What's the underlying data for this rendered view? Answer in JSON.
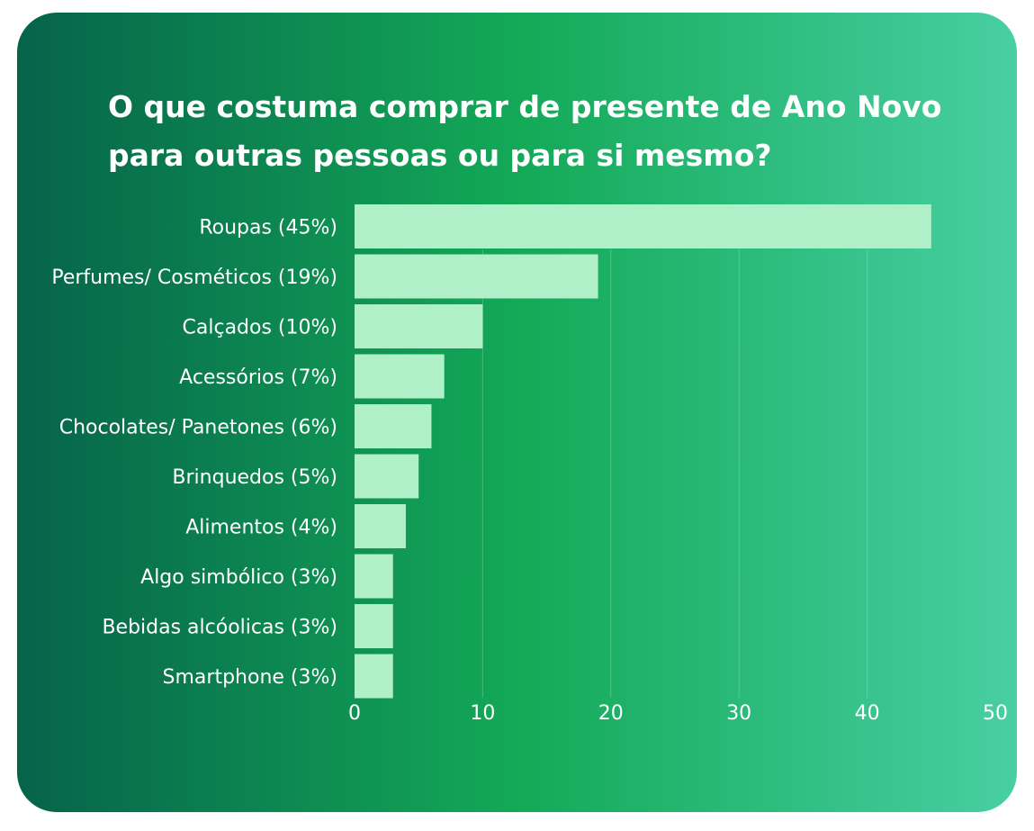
{
  "colors": {
    "gradient_start": "#06634a",
    "gradient_mid": "#13a957",
    "gradient_end": "#48cfa3",
    "bar": "#b0f0c8",
    "text": "#ffffff"
  },
  "chart_data": {
    "type": "bar",
    "orientation": "horizontal",
    "title": "O que costuma comprar de presente de Ano Novo para outras pessoas ou para si mesmo?",
    "categories": [
      "Roupas (45%)",
      "Perfumes/ Cosméticos (19%)",
      "Calçados (10%)",
      "Acessórios (7%)",
      "Chocolates/ Panetones (6%)",
      "Brinquedos (5%)",
      "Alimentos (4%)",
      "Algo simbólico (3%)",
      "Bebidas alcóolicas (3%)",
      "Smartphone (3%)"
    ],
    "values": [
      45,
      19,
      10,
      7,
      6,
      5,
      4,
      3,
      3,
      3
    ],
    "xlim": [
      0,
      50
    ],
    "xticks": [
      "0",
      "10",
      "20",
      "30",
      "40",
      "50"
    ],
    "grid": true,
    "legend": "none"
  }
}
